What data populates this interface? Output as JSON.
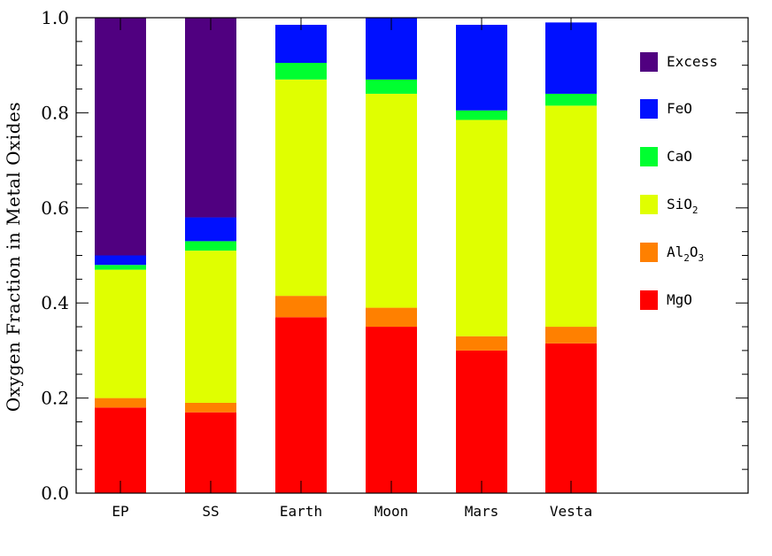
{
  "chart_data": {
    "type": "bar",
    "stacked": true,
    "ylabel": "Oxygen Fraction in Metal Oxides",
    "xlabel": "",
    "ylim": [
      0,
      1.0
    ],
    "yticks": [
      "0.0",
      "0.2",
      "0.4",
      "0.6",
      "0.8",
      "1.0"
    ],
    "categories": [
      "EP",
      "SS",
      "Earth",
      "Moon",
      "Mars",
      "Vesta"
    ],
    "legend_position": "right",
    "series": [
      {
        "name": "MgO",
        "color": "#ff0000",
        "values": [
          0.18,
          0.17,
          0.37,
          0.35,
          0.3,
          0.315
        ]
      },
      {
        "name": "Al2O3",
        "color": "#ff8000",
        "values": [
          0.02,
          0.02,
          0.045,
          0.04,
          0.03,
          0.035
        ]
      },
      {
        "name": "SiO2",
        "color": "#e0ff00",
        "values": [
          0.27,
          0.32,
          0.455,
          0.45,
          0.455,
          0.465
        ]
      },
      {
        "name": "CaO",
        "color": "#00ff30",
        "values": [
          0.01,
          0.02,
          0.035,
          0.03,
          0.02,
          0.025
        ]
      },
      {
        "name": "FeO",
        "color": "#0010ff",
        "values": [
          0.02,
          0.05,
          0.08,
          0.13,
          0.18,
          0.15
        ]
      },
      {
        "name": "Excess",
        "color": "#500080",
        "values": [
          0.5,
          0.42,
          0.0,
          0.0,
          0.0,
          0.0
        ]
      }
    ]
  },
  "legend": [
    {
      "main": "Excess",
      "sub1": "",
      "mid": "",
      "sub2": "",
      "color": "#500080"
    },
    {
      "main": "FeO",
      "sub1": "",
      "mid": "",
      "sub2": "",
      "color": "#0010ff"
    },
    {
      "main": "CaO",
      "sub1": "",
      "mid": "",
      "sub2": "",
      "color": "#00ff30"
    },
    {
      "main": "SiO",
      "sub1": "2",
      "mid": "",
      "sub2": "",
      "color": "#e0ff00"
    },
    {
      "main": "Al",
      "sub1": "2",
      "mid": "O",
      "sub2": "3",
      "color": "#ff8000"
    },
    {
      "main": "MgO",
      "sub1": "",
      "mid": "",
      "sub2": "",
      "color": "#ff0000"
    }
  ]
}
